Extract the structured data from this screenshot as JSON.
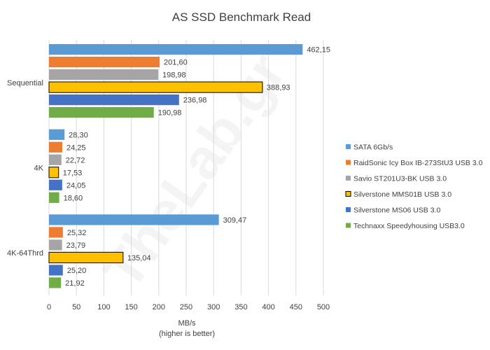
{
  "chart_data": {
    "type": "bar",
    "orientation": "horizontal",
    "title": "AS SSD Benchmark Read",
    "xlabel": "MB/s",
    "xlabel_note": "(higher is better)",
    "ylabel": "",
    "xlim": [
      0,
      500
    ],
    "xticks": [
      0,
      50,
      100,
      150,
      200,
      250,
      300,
      350,
      400,
      450,
      500
    ],
    "grid": true,
    "legend_position": "right",
    "watermark": "TheLab.gr",
    "categories": [
      "Sequential",
      "4K",
      "4K-64Thrd"
    ],
    "series": [
      {
        "name": "SATA 6Gb/s",
        "color": "#5b9bd5",
        "values": [
          462.15,
          28.3,
          309.47
        ],
        "labels": [
          "462,15",
          "28,30",
          "309,47"
        ]
      },
      {
        "name": "RaidSonic Icy Box IB-273StU3 USB 3.0",
        "color": "#ed7d31",
        "values": [
          201.6,
          24.25,
          25.32
        ],
        "labels": [
          "201,60",
          "24,25",
          "25,32"
        ]
      },
      {
        "name": "Savio ST201U3-BK USB 3.0",
        "color": "#a5a5a5",
        "values": [
          198.98,
          22.72,
          23.79
        ],
        "labels": [
          "198,98",
          "22,72",
          "23,79"
        ]
      },
      {
        "name": "Silverstone MMS01B USB 3.0",
        "color": "#ffc000",
        "outline": true,
        "values": [
          388.93,
          17.53,
          135.04
        ],
        "labels": [
          "388,93",
          "17,53",
          "135,04"
        ]
      },
      {
        "name": "Silverstone MS06 USB 3.0",
        "color": "#4472c4",
        "values": [
          236.98,
          24.05,
          25.2
        ],
        "labels": [
          "236,98",
          "24,05",
          "25,20"
        ]
      },
      {
        "name": "Technaxx Speedyhousing USB3.0",
        "color": "#70ad47",
        "values": [
          190.98,
          18.6,
          21.92
        ],
        "labels": [
          "190,98",
          "18,60",
          "21,92"
        ]
      }
    ]
  }
}
